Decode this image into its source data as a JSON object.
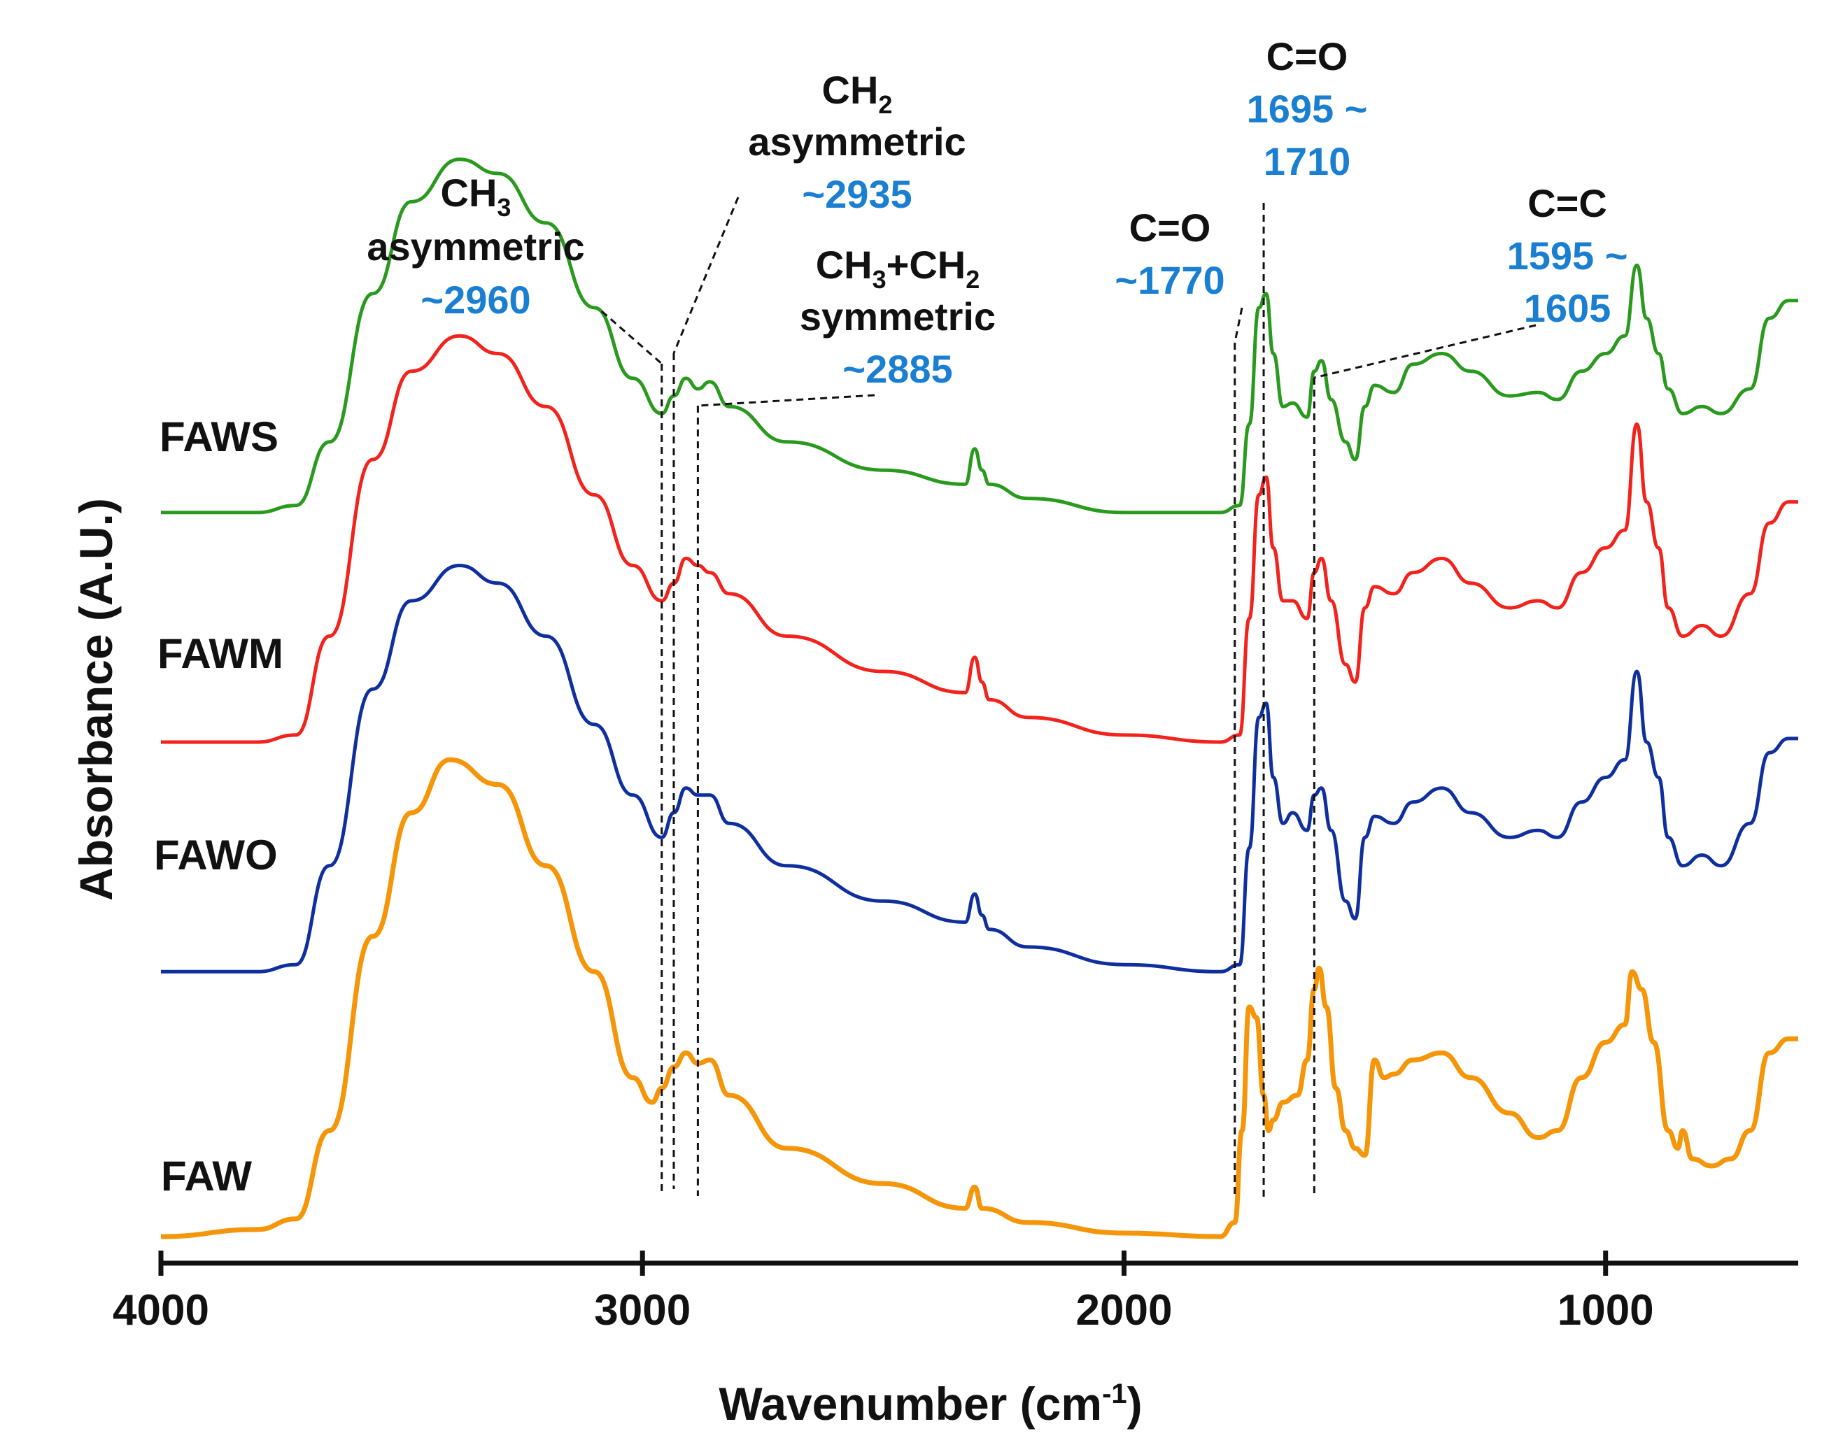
{
  "chart_data": {
    "type": "line",
    "xlabel": "Wavenumber (cm⁻¹)",
    "ylabel": "Absorbance (A.U.)",
    "xlim": [
      4000,
      600
    ],
    "x_reversed": true,
    "x_ticks": [
      4000,
      3000,
      2000,
      1000
    ],
    "grid": false,
    "series": [
      {
        "name": "FAWS",
        "color": "#2a9a1e",
        "offset": 2.05,
        "points": [
          [
            4000,
            0.0
          ],
          [
            3800,
            0.0
          ],
          [
            3720,
            0.02
          ],
          [
            3650,
            0.2
          ],
          [
            3560,
            0.62
          ],
          [
            3480,
            0.88
          ],
          [
            3380,
            1.0
          ],
          [
            3300,
            0.96
          ],
          [
            3200,
            0.82
          ],
          [
            3100,
            0.58
          ],
          [
            3020,
            0.38
          ],
          [
            2960,
            0.28
          ],
          [
            2935,
            0.33
          ],
          [
            2910,
            0.38
          ],
          [
            2885,
            0.35
          ],
          [
            2860,
            0.37
          ],
          [
            2820,
            0.3
          ],
          [
            2700,
            0.2
          ],
          [
            2500,
            0.12
          ],
          [
            2330,
            0.08
          ],
          [
            2310,
            0.18
          ],
          [
            2295,
            0.12
          ],
          [
            2280,
            0.08
          ],
          [
            2200,
            0.04
          ],
          [
            2000,
            0.0
          ],
          [
            1800,
            0.0
          ],
          [
            1760,
            0.02
          ],
          [
            1740,
            0.25
          ],
          [
            1720,
            0.58
          ],
          [
            1705,
            0.62
          ],
          [
            1690,
            0.45
          ],
          [
            1670,
            0.3
          ],
          [
            1650,
            0.31
          ],
          [
            1620,
            0.27
          ],
          [
            1605,
            0.4
          ],
          [
            1590,
            0.43
          ],
          [
            1570,
            0.32
          ],
          [
            1540,
            0.2
          ],
          [
            1520,
            0.15
          ],
          [
            1500,
            0.3
          ],
          [
            1480,
            0.36
          ],
          [
            1440,
            0.34
          ],
          [
            1400,
            0.42
          ],
          [
            1340,
            0.45
          ],
          [
            1280,
            0.4
          ],
          [
            1200,
            0.33
          ],
          [
            1140,
            0.34
          ],
          [
            1100,
            0.32
          ],
          [
            1050,
            0.4
          ],
          [
            1000,
            0.45
          ],
          [
            960,
            0.5
          ],
          [
            935,
            0.7
          ],
          [
            915,
            0.55
          ],
          [
            890,
            0.45
          ],
          [
            870,
            0.35
          ],
          [
            840,
            0.28
          ],
          [
            800,
            0.3
          ],
          [
            760,
            0.28
          ],
          [
            700,
            0.35
          ],
          [
            660,
            0.55
          ],
          [
            620,
            0.6
          ],
          [
            600,
            0.6
          ]
        ]
      },
      {
        "name": "FAWM",
        "color": "#f2231c",
        "offset": 1.4,
        "points": [
          [
            4000,
            0.0
          ],
          [
            3800,
            0.0
          ],
          [
            3720,
            0.02
          ],
          [
            3650,
            0.3
          ],
          [
            3560,
            0.8
          ],
          [
            3480,
            1.05
          ],
          [
            3380,
            1.15
          ],
          [
            3300,
            1.1
          ],
          [
            3200,
            0.95
          ],
          [
            3100,
            0.7
          ],
          [
            3020,
            0.5
          ],
          [
            2960,
            0.4
          ],
          [
            2935,
            0.45
          ],
          [
            2910,
            0.52
          ],
          [
            2885,
            0.5
          ],
          [
            2860,
            0.48
          ],
          [
            2820,
            0.42
          ],
          [
            2700,
            0.3
          ],
          [
            2500,
            0.2
          ],
          [
            2330,
            0.14
          ],
          [
            2310,
            0.24
          ],
          [
            2295,
            0.17
          ],
          [
            2280,
            0.12
          ],
          [
            2200,
            0.07
          ],
          [
            2000,
            0.02
          ],
          [
            1800,
            0.0
          ],
          [
            1760,
            0.02
          ],
          [
            1740,
            0.35
          ],
          [
            1720,
            0.7
          ],
          [
            1705,
            0.75
          ],
          [
            1690,
            0.55
          ],
          [
            1670,
            0.4
          ],
          [
            1650,
            0.4
          ],
          [
            1620,
            0.35
          ],
          [
            1605,
            0.48
          ],
          [
            1590,
            0.52
          ],
          [
            1570,
            0.4
          ],
          [
            1540,
            0.22
          ],
          [
            1520,
            0.17
          ],
          [
            1500,
            0.38
          ],
          [
            1480,
            0.44
          ],
          [
            1440,
            0.42
          ],
          [
            1400,
            0.48
          ],
          [
            1340,
            0.52
          ],
          [
            1280,
            0.45
          ],
          [
            1200,
            0.38
          ],
          [
            1140,
            0.4
          ],
          [
            1100,
            0.38
          ],
          [
            1050,
            0.48
          ],
          [
            1000,
            0.55
          ],
          [
            960,
            0.6
          ],
          [
            935,
            0.9
          ],
          [
            915,
            0.68
          ],
          [
            890,
            0.55
          ],
          [
            870,
            0.38
          ],
          [
            840,
            0.3
          ],
          [
            800,
            0.33
          ],
          [
            760,
            0.3
          ],
          [
            700,
            0.42
          ],
          [
            660,
            0.62
          ],
          [
            620,
            0.68
          ],
          [
            600,
            0.68
          ]
        ]
      },
      {
        "name": "FAWO",
        "color": "#0f2f9e",
        "offset": 0.75,
        "points": [
          [
            4000,
            0.0
          ],
          [
            3800,
            0.0
          ],
          [
            3720,
            0.02
          ],
          [
            3650,
            0.3
          ],
          [
            3560,
            0.8
          ],
          [
            3480,
            1.05
          ],
          [
            3380,
            1.15
          ],
          [
            3300,
            1.1
          ],
          [
            3200,
            0.95
          ],
          [
            3100,
            0.7
          ],
          [
            3020,
            0.5
          ],
          [
            2960,
            0.38
          ],
          [
            2935,
            0.45
          ],
          [
            2910,
            0.52
          ],
          [
            2885,
            0.5
          ],
          [
            2860,
            0.5
          ],
          [
            2820,
            0.42
          ],
          [
            2700,
            0.3
          ],
          [
            2500,
            0.2
          ],
          [
            2330,
            0.14
          ],
          [
            2310,
            0.22
          ],
          [
            2295,
            0.16
          ],
          [
            2280,
            0.12
          ],
          [
            2200,
            0.07
          ],
          [
            2000,
            0.02
          ],
          [
            1800,
            0.0
          ],
          [
            1760,
            0.02
          ],
          [
            1740,
            0.35
          ],
          [
            1720,
            0.72
          ],
          [
            1705,
            0.76
          ],
          [
            1690,
            0.55
          ],
          [
            1670,
            0.42
          ],
          [
            1650,
            0.45
          ],
          [
            1620,
            0.4
          ],
          [
            1605,
            0.5
          ],
          [
            1590,
            0.52
          ],
          [
            1570,
            0.4
          ],
          [
            1540,
            0.2
          ],
          [
            1520,
            0.15
          ],
          [
            1500,
            0.38
          ],
          [
            1480,
            0.44
          ],
          [
            1440,
            0.42
          ],
          [
            1400,
            0.48
          ],
          [
            1340,
            0.52
          ],
          [
            1280,
            0.45
          ],
          [
            1200,
            0.38
          ],
          [
            1140,
            0.4
          ],
          [
            1100,
            0.38
          ],
          [
            1050,
            0.48
          ],
          [
            1000,
            0.55
          ],
          [
            960,
            0.6
          ],
          [
            935,
            0.85
          ],
          [
            915,
            0.65
          ],
          [
            890,
            0.55
          ],
          [
            870,
            0.38
          ],
          [
            840,
            0.3
          ],
          [
            800,
            0.33
          ],
          [
            760,
            0.3
          ],
          [
            700,
            0.42
          ],
          [
            660,
            0.62
          ],
          [
            620,
            0.66
          ],
          [
            600,
            0.66
          ]
        ]
      },
      {
        "name": "FAW",
        "color": "#f5960a",
        "offset": 0.0,
        "points": [
          [
            4000,
            0.0
          ],
          [
            3800,
            0.02
          ],
          [
            3720,
            0.05
          ],
          [
            3650,
            0.3
          ],
          [
            3560,
            0.85
          ],
          [
            3480,
            1.2
          ],
          [
            3400,
            1.35
          ],
          [
            3300,
            1.28
          ],
          [
            3200,
            1.05
          ],
          [
            3100,
            0.75
          ],
          [
            3020,
            0.45
          ],
          [
            2980,
            0.38
          ],
          [
            2960,
            0.42
          ],
          [
            2935,
            0.48
          ],
          [
            2910,
            0.52
          ],
          [
            2885,
            0.49
          ],
          [
            2860,
            0.5
          ],
          [
            2820,
            0.4
          ],
          [
            2700,
            0.25
          ],
          [
            2500,
            0.15
          ],
          [
            2330,
            0.08
          ],
          [
            2310,
            0.14
          ],
          [
            2295,
            0.08
          ],
          [
            2200,
            0.04
          ],
          [
            2000,
            0.01
          ],
          [
            1800,
            0.0
          ],
          [
            1770,
            0.04
          ],
          [
            1755,
            0.3
          ],
          [
            1740,
            0.65
          ],
          [
            1725,
            0.62
          ],
          [
            1710,
            0.4
          ],
          [
            1700,
            0.3
          ],
          [
            1690,
            0.33
          ],
          [
            1670,
            0.38
          ],
          [
            1640,
            0.4
          ],
          [
            1620,
            0.5
          ],
          [
            1605,
            0.7
          ],
          [
            1595,
            0.76
          ],
          [
            1580,
            0.65
          ],
          [
            1560,
            0.42
          ],
          [
            1540,
            0.3
          ],
          [
            1520,
            0.25
          ],
          [
            1500,
            0.23
          ],
          [
            1480,
            0.5
          ],
          [
            1460,
            0.45
          ],
          [
            1440,
            0.46
          ],
          [
            1400,
            0.5
          ],
          [
            1340,
            0.52
          ],
          [
            1280,
            0.45
          ],
          [
            1200,
            0.35
          ],
          [
            1140,
            0.28
          ],
          [
            1100,
            0.3
          ],
          [
            1050,
            0.45
          ],
          [
            1000,
            0.55
          ],
          [
            960,
            0.6
          ],
          [
            945,
            0.75
          ],
          [
            925,
            0.7
          ],
          [
            900,
            0.55
          ],
          [
            870,
            0.3
          ],
          [
            850,
            0.25
          ],
          [
            840,
            0.3
          ],
          [
            820,
            0.22
          ],
          [
            780,
            0.2
          ],
          [
            740,
            0.22
          ],
          [
            700,
            0.3
          ],
          [
            660,
            0.52
          ],
          [
            620,
            0.56
          ],
          [
            600,
            0.56
          ]
        ]
      }
    ],
    "annotations": [
      {
        "label": "CH3",
        "sub": "3",
        "text2": "asymmetric",
        "value": "~2960",
        "at": 2960
      },
      {
        "label": "CH2",
        "sub": "2",
        "text2": "asymmetric",
        "value": "~2935",
        "at": 2935
      },
      {
        "label": "CH3+CH2",
        "text2": "symmetric",
        "value": "~2885",
        "at": 2885
      },
      {
        "label": "C=O",
        "value": "~1770",
        "at": 1770
      },
      {
        "label": "C=O",
        "value": "1695 ~ 1710",
        "at": 1710
      },
      {
        "label": "C=C",
        "value": "1595 ~ 1605",
        "at": 1605
      }
    ]
  },
  "labels": {
    "ann1_l1": "CH",
    "ann1_sub": "3",
    "ann1_l2": "asymmetric",
    "ann1_val": "~2960",
    "ann2_l1": "CH",
    "ann2_sub": "2",
    "ann2_l2": "asymmetric",
    "ann2_val": "~2935",
    "ann3_l1a": "CH",
    "ann3_sub1": "3",
    "ann3_l1b": "+CH",
    "ann3_sub2": "2",
    "ann3_l2": "symmetric",
    "ann3_val": "~2885",
    "ann4_l1": "C=O",
    "ann4_val": "~1770",
    "ann5_l1": "C=O",
    "ann5_val1": "1695 ~",
    "ann5_val2": "1710",
    "ann6_l1": "C=C",
    "ann6_val1": "1595 ~",
    "ann6_val2": "1605",
    "xlabel_main": "Wavenumber (cm",
    "xlabel_sup": "-1",
    "xlabel_close": ")",
    "ylabel": "Absorbance (A.U.)"
  }
}
